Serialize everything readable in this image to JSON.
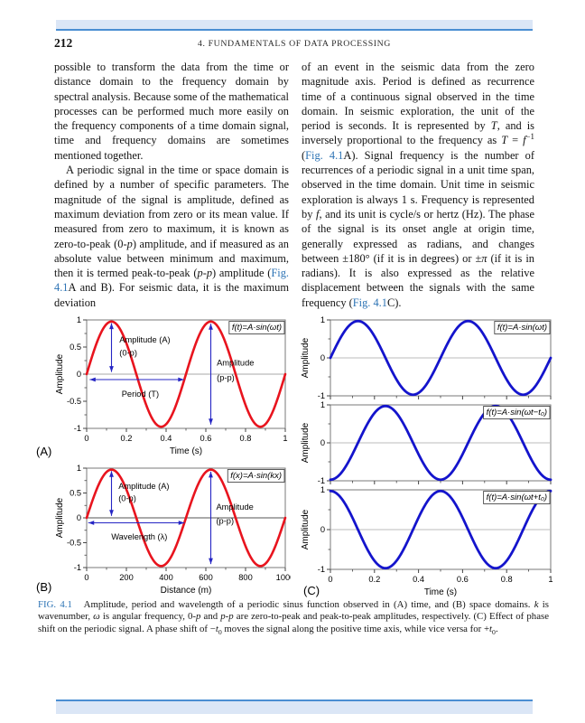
{
  "page": {
    "number": "212",
    "running_head": "4. FUNDAMENTALS OF DATA PROCESSING"
  },
  "body": {
    "left_col_p1": [
      {
        "t": "possible to transform the data from the time or distance domain to the frequency domain by spectral analysis. Because some of the mathematical processes can be performed much more easily on the frequency components of a time domain signal, time and frequency domains are sometimes mentioned together."
      }
    ],
    "left_col_p2": [
      {
        "t": "A periodic signal in the time or space domain is defined by a number of specific parameters. The magnitude of the signal is amplitude, defined as maximum deviation from zero or its mean value. If measured from zero to maximum, it is known as zero-to-peak (0-"
      },
      {
        "t": "p",
        "it": true
      },
      {
        "t": ") amplitude, and if measured as an absolute value between minimum and maximum, then it is termed peak-to-peak ("
      },
      {
        "t": "p",
        "it": true
      },
      {
        "t": "-"
      },
      {
        "t": "p",
        "it": true
      },
      {
        "t": ") amplitude ("
      },
      {
        "t": "Fig. 4.1",
        "link": true
      },
      {
        "t": "A and B). For seismic data, it is the maximum deviation"
      }
    ],
    "right_col_p1": [
      {
        "t": "of an event in the seismic data from the zero magnitude axis. Period is defined as recurrence time of a continuous signal observed in the time domain. In seismic exploration, the unit of the period is seconds. It is represented by "
      },
      {
        "t": "T",
        "it": true
      },
      {
        "t": ", and is inversely proportional to the frequency as "
      },
      {
        "t": "T",
        "it": true
      },
      {
        "t": " = "
      },
      {
        "t": "f",
        "it": true
      },
      {
        "t": "−1",
        "sup": true
      },
      {
        "t": " ("
      },
      {
        "t": "Fig. 4.1",
        "link": true
      },
      {
        "t": "A). Signal frequency is the number of recurrences of a periodic signal in a unit time span, observed in the time domain. Unit time in seismic exploration is always 1 s. Frequency is represented by "
      },
      {
        "t": "f",
        "it": true
      },
      {
        "t": ", and its unit is cycle/s or hertz (Hz). The phase of the signal is its onset angle at origin time, generally expressed as radians, and changes between ±180° (if it is in degrees) or ±"
      },
      {
        "t": "π",
        "it": true
      },
      {
        "t": " (if it is in radians). It is also expressed as the relative displacement between the signals with the same frequency ("
      },
      {
        "t": "Fig. 4.1",
        "link": true
      },
      {
        "t": "C)."
      }
    ]
  },
  "figure": {
    "panel_a_label": "(A)",
    "panel_b_label": "(B)",
    "panel_c_label": "(C)"
  },
  "caption_segments": [
    {
      "t": "FIG. 4.1",
      "link": true
    },
    {
      "t": "   Amplitude, period and wavelength of a periodic sinus function observed in (A) time, and (B) space domains. "
    },
    {
      "t": "k",
      "it": true
    },
    {
      "t": " is wavenumber, "
    },
    {
      "t": "ω",
      "it": true
    },
    {
      "t": " is angular frequency, 0-"
    },
    {
      "t": "p",
      "it": true
    },
    {
      "t": " and "
    },
    {
      "t": "p",
      "it": true
    },
    {
      "t": "-"
    },
    {
      "t": "p",
      "it": true
    },
    {
      "t": " are zero-to-peak and peak-to-peak amplitudes, respectively. (C) Effect of phase shift on the periodic signal. A phase shift of −"
    },
    {
      "t": "t",
      "it": true
    },
    {
      "t": "0",
      "sub": true
    },
    {
      "t": " moves the signal along the positive time axis, while vice versa for +"
    },
    {
      "t": "t",
      "it": true
    },
    {
      "t": "0",
      "sub": true
    },
    {
      "t": "."
    }
  ],
  "colors": {
    "red_curve": "#e8141e",
    "blue_curve": "#1414cc",
    "arrow_blue": "#2525c4",
    "link_blue": "#2e74b5",
    "highlight_fill": "#dbe6f6",
    "highlight_line": "#4a8ed2"
  },
  "chart_data": [
    {
      "id": "A",
      "type": "line",
      "func_label": "f(t)=A·sin(ωt)",
      "xlabel": "Time (s)",
      "ylabel": "Amplitude",
      "xlim": [
        0,
        1
      ],
      "ylim": [
        -1,
        1
      ],
      "xticks": [
        0,
        0.2,
        0.4,
        0.6,
        0.8,
        1
      ],
      "xtick_labels": [
        "0",
        "0.2",
        "0.4",
        "0.6",
        "0.8",
        "1"
      ],
      "xminor": [
        0.1,
        0.3,
        0.5,
        0.7,
        0.9
      ],
      "yticks": [
        1,
        0.5,
        0,
        -0.5,
        -1
      ],
      "ytick_labels": [
        "1",
        "0.5",
        "0",
        "-0.5",
        "-1"
      ],
      "yminor": [
        0.75,
        0.25,
        -0.25,
        -0.75
      ],
      "show_xtick_labels": true,
      "series": [
        {
          "name": "f(t)=A·sin(ωt)",
          "color": "#e8141e",
          "amplitude": 1,
          "cycles": 2,
          "phase_deg": 0
        }
      ],
      "annotations": [
        {
          "kind": "varrow",
          "x": 0.125,
          "y1": 0.04,
          "y2": 0.94
        },
        {
          "kind": "text",
          "x": 0.165,
          "y": 0.58,
          "text": "Amplitude (A)",
          "anchor": "start"
        },
        {
          "kind": "text",
          "x": 0.165,
          "y": 0.34,
          "text": "(0-p)",
          "anchor": "start"
        },
        {
          "kind": "harrow",
          "x1": 0.015,
          "x2": 0.49,
          "y": -0.1
        },
        {
          "kind": "text",
          "x": 0.27,
          "y": -0.42,
          "text": "Period (T)",
          "anchor": "middle"
        },
        {
          "kind": "varrow",
          "x": 0.625,
          "y1": -0.93,
          "y2": 0.93
        },
        {
          "kind": "text",
          "x": 0.655,
          "y": 0.16,
          "text": "Amplitude",
          "anchor": "start"
        },
        {
          "kind": "text",
          "x": 0.655,
          "y": -0.12,
          "text": "(p-p)",
          "anchor": "start"
        }
      ]
    },
    {
      "id": "B",
      "type": "line",
      "func_label": "f(x)=A·sin(kx)",
      "xlabel": "Distance (m)",
      "ylabel": "Amplitude",
      "xlim": [
        0,
        1000
      ],
      "ylim": [
        -1,
        1
      ],
      "xticks": [
        0,
        200,
        400,
        600,
        800,
        1000
      ],
      "xtick_labels": [
        "0",
        "200",
        "400",
        "600",
        "800",
        "1000"
      ],
      "xminor": [
        100,
        300,
        500,
        700,
        900
      ],
      "yticks": [
        1,
        0.5,
        0,
        -0.5,
        -1
      ],
      "ytick_labels": [
        "1",
        "0.5",
        "0",
        "-0.5",
        "-1"
      ],
      "yminor": [
        0.75,
        0.25,
        -0.25,
        -0.75
      ],
      "show_xtick_labels": true,
      "series": [
        {
          "name": "f(x)=A·sin(kx)",
          "color": "#e8141e",
          "amplitude": 1,
          "cycles": 2,
          "phase_deg": 0
        }
      ],
      "annotations": [
        {
          "kind": "varrow",
          "x": 125,
          "y1": 0.04,
          "y2": 0.94
        },
        {
          "kind": "text",
          "x": 160,
          "y": 0.58,
          "text": "Amplitude (A)",
          "anchor": "start"
        },
        {
          "kind": "text",
          "x": 160,
          "y": 0.34,
          "text": "(0-p)",
          "anchor": "start"
        },
        {
          "kind": "harrow",
          "x1": 8,
          "x2": 492,
          "y": -0.1
        },
        {
          "kind": "text",
          "x": 265,
          "y": -0.44,
          "text": "Wavelength (λ)",
          "anchor": "middle"
        },
        {
          "kind": "varrow",
          "x": 625,
          "y1": -0.93,
          "y2": 0.93
        },
        {
          "kind": "text",
          "x": 652,
          "y": 0.16,
          "text": "Amplitude",
          "anchor": "start"
        },
        {
          "kind": "text",
          "x": 652,
          "y": -0.12,
          "text": "(p-p)",
          "anchor": "start"
        }
      ]
    },
    {
      "id": "C1",
      "type": "line",
      "func_label": "f(t)=A·sin(ωt)",
      "xlabel": null,
      "ylabel": "Amplitude",
      "xlim": [
        0,
        1
      ],
      "ylim": [
        -1,
        1
      ],
      "xticks": [
        0,
        0.2,
        0.4,
        0.6,
        0.8,
        1
      ],
      "xtick_labels": null,
      "xminor": [
        0.1,
        0.3,
        0.5,
        0.7,
        0.9
      ],
      "yticks": [
        1,
        0,
        -1
      ],
      "ytick_labels": [
        "1",
        "0",
        "-1"
      ],
      "yminor": [
        0.5,
        -0.5
      ],
      "show_xtick_labels": false,
      "series": [
        {
          "name": "f(t)=A·sin(ωt)",
          "color": "#1414cc",
          "amplitude": 1,
          "cycles": 2,
          "phase_deg": 0
        }
      ],
      "annotations": []
    },
    {
      "id": "C2",
      "type": "line",
      "func_label": "f(t)=A·sin(ωt−t₀)",
      "xlabel": null,
      "ylabel": "Amplitude",
      "xlim": [
        0,
        1
      ],
      "ylim": [
        -1,
        1
      ],
      "xticks": [
        0,
        0.2,
        0.4,
        0.6,
        0.8,
        1
      ],
      "xtick_labels": null,
      "xminor": [
        0.1,
        0.3,
        0.5,
        0.7,
        0.9
      ],
      "yticks": [
        1,
        0,
        -1
      ],
      "ytick_labels": [
        "1",
        "0",
        "-1"
      ],
      "yminor": [
        0.5,
        -0.5
      ],
      "show_xtick_labels": false,
      "series": [
        {
          "name": "f(t)=A·sin(ωt−t₀)",
          "color": "#1414cc",
          "amplitude": 1,
          "cycles": 2,
          "phase_deg": -90
        }
      ],
      "annotations": []
    },
    {
      "id": "C3",
      "type": "line",
      "func_label": "f(t)=A·sin(ωt+t₀)",
      "xlabel": "Time (s)",
      "ylabel": "Amplitude",
      "xlim": [
        0,
        1
      ],
      "ylim": [
        -1,
        1
      ],
      "xticks": [
        0,
        0.2,
        0.4,
        0.6,
        0.8,
        1
      ],
      "xtick_labels": [
        "0",
        "0.2",
        "0.4",
        "0.6",
        "0.8",
        "1"
      ],
      "xminor": [
        0.1,
        0.3,
        0.5,
        0.7,
        0.9
      ],
      "yticks": [
        1,
        0,
        -1
      ],
      "ytick_labels": [
        "1",
        "0",
        "-1"
      ],
      "yminor": [
        0.5,
        -0.5
      ],
      "show_xtick_labels": true,
      "series": [
        {
          "name": "f(t)=A·sin(ωt+t₀)",
          "color": "#1414cc",
          "amplitude": 1,
          "cycles": 2,
          "phase_deg": 90
        }
      ],
      "annotations": []
    }
  ]
}
